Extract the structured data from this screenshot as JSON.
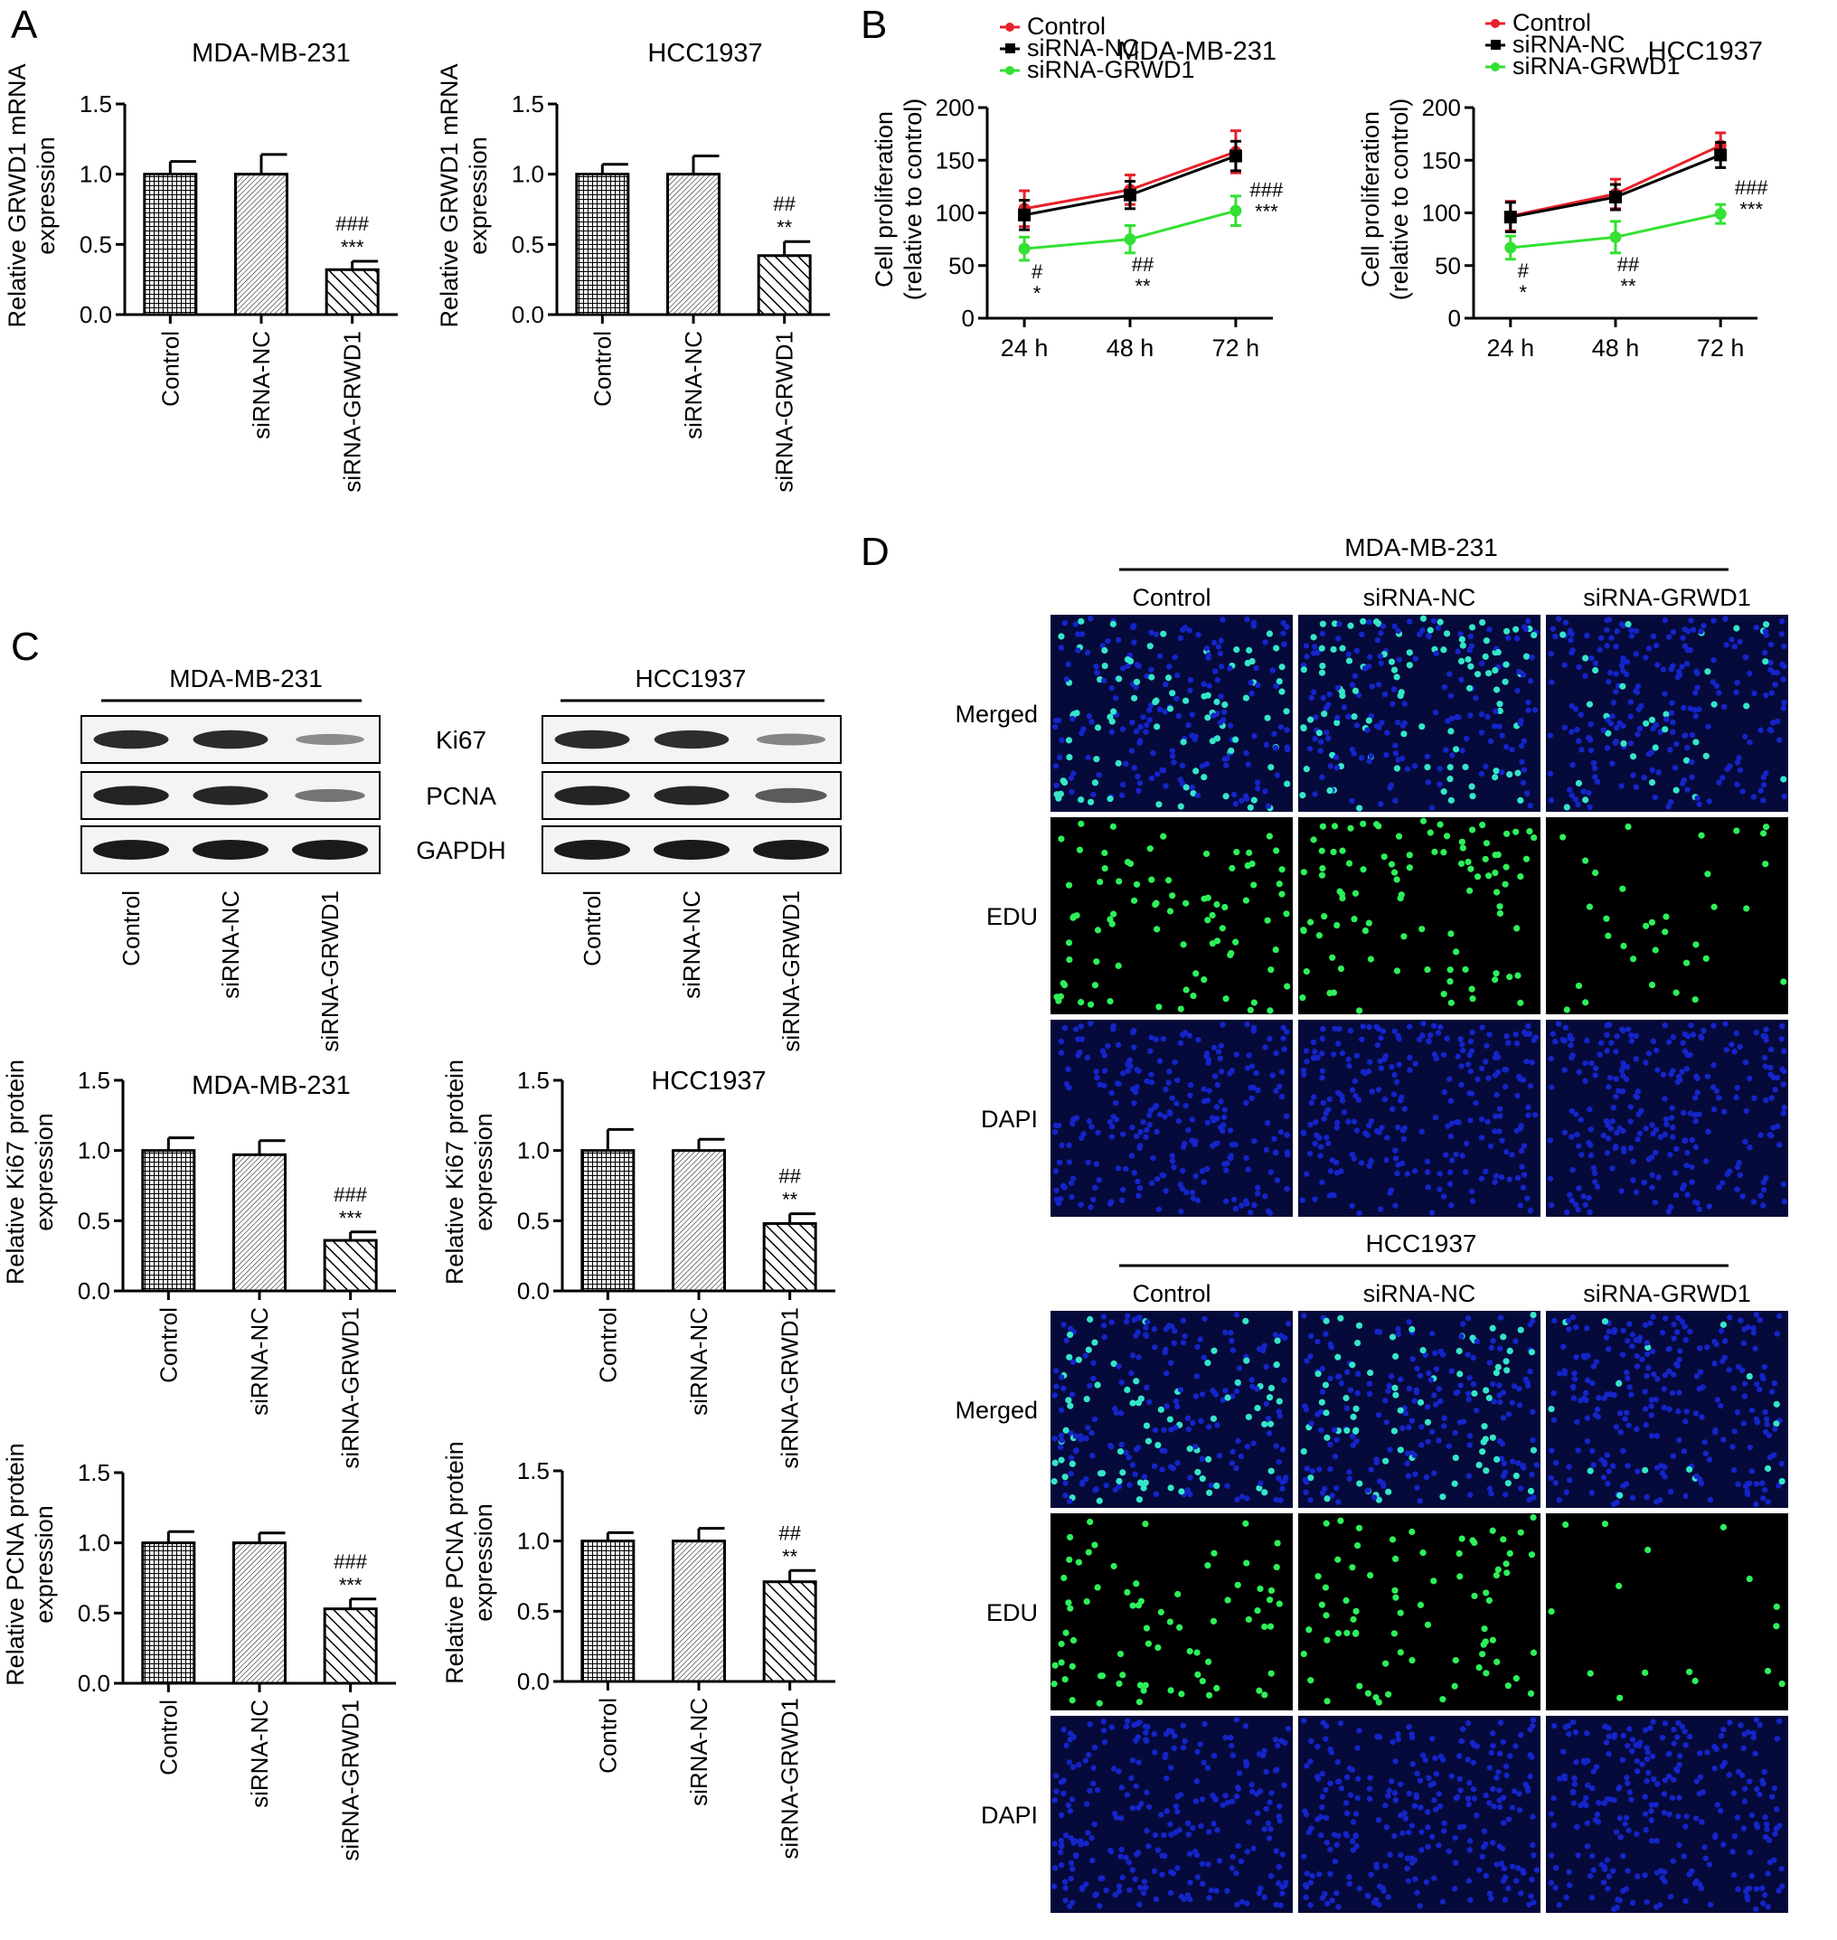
{
  "panel_labels": {
    "a": "A",
    "b": "B",
    "c": "C",
    "d": "D"
  },
  "labels": {
    "control": "Control",
    "sinc": "siRNA-NC",
    "sigrwd1": "siRNA-GRWD1",
    "mda": "MDA-MB-231",
    "hcc": "HCC1937",
    "ki67": "Ki67",
    "pcna": "PCNA",
    "gapdh": "GAPDH",
    "merged": "Merged",
    "edu": "EDU",
    "dapi": "DAPI"
  },
  "colors": {
    "control_line": "#e8202a",
    "sinc_line": "#000000",
    "sigrwd1_line": "#33e033",
    "dapi_blue": "#1524c8",
    "edu_green": "#2ef05a",
    "merged_cyan": "#35e6c8"
  },
  "chart_data": [
    {
      "id": "A1",
      "type": "bar",
      "title": "MDA-MB-231",
      "ylabel": [
        "Relative GRWD1 mRNA",
        "expression"
      ],
      "categories": [
        "Control",
        "siRNA-NC",
        "siRNA-GRWD1"
      ],
      "values": [
        1.0,
        1.0,
        0.32
      ],
      "errors": [
        0.09,
        0.14,
        0.06
      ],
      "annotations": [
        [],
        [],
        [
          "###",
          "***"
        ]
      ],
      "ylim": [
        0,
        1.5
      ],
      "yticks": [
        "0.0",
        "0.5",
        "1.0",
        "1.5"
      ]
    },
    {
      "id": "A2",
      "type": "bar",
      "title": "HCC1937",
      "ylabel": [
        "Relative GRWD1 mRNA",
        "expression"
      ],
      "categories": [
        "Control",
        "siRNA-NC",
        "siRNA-GRWD1"
      ],
      "values": [
        1.0,
        1.0,
        0.42
      ],
      "errors": [
        0.07,
        0.13,
        0.1
      ],
      "annotations": [
        [],
        [],
        [
          "##",
          "**"
        ]
      ],
      "ylim": [
        0,
        1.5
      ],
      "yticks": [
        "0.0",
        "0.5",
        "1.0",
        "1.5"
      ]
    },
    {
      "id": "B1",
      "type": "line",
      "title": "MDA-MB-231",
      "ylabel": [
        "Cell proliferation",
        "(relative to control)"
      ],
      "x": [
        "24 h",
        "48 h",
        "72 h"
      ],
      "series": [
        {
          "name": "Control",
          "values": [
            104,
            122,
            158
          ],
          "errors": [
            17,
            14,
            20
          ]
        },
        {
          "name": "siRNA-NC",
          "values": [
            98,
            117,
            154
          ],
          "errors": [
            14,
            13,
            14
          ]
        },
        {
          "name": "siRNA-GRWD1",
          "values": [
            66,
            75,
            102
          ],
          "errors": [
            11,
            13,
            14
          ]
        }
      ],
      "annotations": [
        [
          "#",
          "*"
        ],
        [
          "##",
          "**"
        ],
        [
          "###",
          "***"
        ]
      ],
      "ylim": [
        0,
        200
      ],
      "yticks": [
        "0",
        "50",
        "100",
        "150",
        "200"
      ]
    },
    {
      "id": "B2",
      "type": "line",
      "title": "HCC1937",
      "ylabel": [
        "Cell proliferation",
        "(relative to control)"
      ],
      "x": [
        "24 h",
        "48 h",
        "72 h"
      ],
      "series": [
        {
          "name": "Control",
          "values": [
            97,
            118,
            164
          ],
          "errors": [
            14,
            14,
            12
          ]
        },
        {
          "name": "siRNA-NC",
          "values": [
            96,
            115,
            155
          ],
          "errors": [
            14,
            12,
            12
          ]
        },
        {
          "name": "siRNA-GRWD1",
          "values": [
            67,
            77,
            99
          ],
          "errors": [
            11,
            15,
            9
          ]
        }
      ],
      "annotations": [
        [
          "#",
          "*"
        ],
        [
          "##",
          "**"
        ],
        [
          "###",
          "***"
        ]
      ],
      "ylim": [
        0,
        200
      ],
      "yticks": [
        "0",
        "50",
        "100",
        "150",
        "200"
      ]
    },
    {
      "id": "C1",
      "type": "bar",
      "title": "MDA-MB-231",
      "ylabel": [
        "Relative Ki67 protein",
        "expression"
      ],
      "categories": [
        "Control",
        "siRNA-NC",
        "siRNA-GRWD1"
      ],
      "values": [
        1.0,
        0.97,
        0.36
      ],
      "errors": [
        0.09,
        0.1,
        0.06
      ],
      "annotations": [
        [],
        [],
        [
          "###",
          "***"
        ]
      ],
      "ylim": [
        0,
        1.5
      ],
      "yticks": [
        "0.0",
        "0.5",
        "1.0",
        "1.5"
      ]
    },
    {
      "id": "C2",
      "type": "bar",
      "title": "HCC1937",
      "ylabel": [
        "Relative Ki67 protein",
        "expression"
      ],
      "categories": [
        "Control",
        "siRNA-NC",
        "siRNA-GRWD1"
      ],
      "values": [
        1.0,
        1.0,
        0.48
      ],
      "errors": [
        0.15,
        0.08,
        0.07
      ],
      "annotations": [
        [],
        [],
        [
          "##",
          "**"
        ]
      ],
      "ylim": [
        0,
        1.5
      ],
      "yticks": [
        "0.0",
        "0.5",
        "1.0",
        "1.5"
      ]
    },
    {
      "id": "C3",
      "type": "bar",
      "title": "",
      "ylabel": [
        "Relative PCNA protein",
        "expression"
      ],
      "categories": [
        "Control",
        "siRNA-NC",
        "siRNA-GRWD1"
      ],
      "values": [
        1.0,
        1.0,
        0.53
      ],
      "errors": [
        0.08,
        0.07,
        0.07
      ],
      "annotations": [
        [],
        [],
        [
          "###",
          "***"
        ]
      ],
      "ylim": [
        0,
        1.5
      ],
      "yticks": [
        "0.0",
        "0.5",
        "1.0",
        "1.5"
      ]
    },
    {
      "id": "C4",
      "type": "bar",
      "title": "",
      "ylabel": [
        "Relative PCNA protein",
        "expression"
      ],
      "categories": [
        "Control",
        "siRNA-NC",
        "siRNA-GRWD1"
      ],
      "values": [
        1.0,
        1.0,
        0.71
      ],
      "errors": [
        0.06,
        0.09,
        0.08
      ],
      "annotations": [
        [],
        [],
        [
          "##",
          "**"
        ]
      ],
      "ylim": [
        0,
        1.5
      ],
      "yticks": [
        "0.0",
        "0.5",
        "1.0",
        "1.5"
      ]
    }
  ],
  "western_blot": {
    "left_cell_line": "MDA-MB-231",
    "right_cell_line": "HCC1937",
    "rows": [
      "Ki67",
      "PCNA",
      "GAPDH"
    ],
    "lanes": [
      "Control",
      "siRNA-NC",
      "siRNA-GRWD1"
    ],
    "band_intensity": {
      "left": [
        [
          0.9,
          0.9,
          0.3
        ],
        [
          0.95,
          0.92,
          0.45
        ],
        [
          1.0,
          1.0,
          1.0
        ]
      ],
      "right": [
        [
          0.9,
          0.88,
          0.35
        ],
        [
          0.95,
          0.93,
          0.6
        ],
        [
          1.0,
          1.0,
          1.0
        ]
      ]
    }
  },
  "edu_assay": {
    "blocks": [
      "MDA-MB-231",
      "HCC1937"
    ],
    "columns": [
      "Control",
      "siRNA-NC",
      "siRNA-GRWD1"
    ],
    "rows": [
      "Merged",
      "EDU",
      "DAPI"
    ],
    "edu_positive_fraction": {
      "MDA-MB-231": [
        0.34,
        0.36,
        0.14
      ],
      "HCC1937": [
        0.26,
        0.28,
        0.08
      ]
    }
  }
}
